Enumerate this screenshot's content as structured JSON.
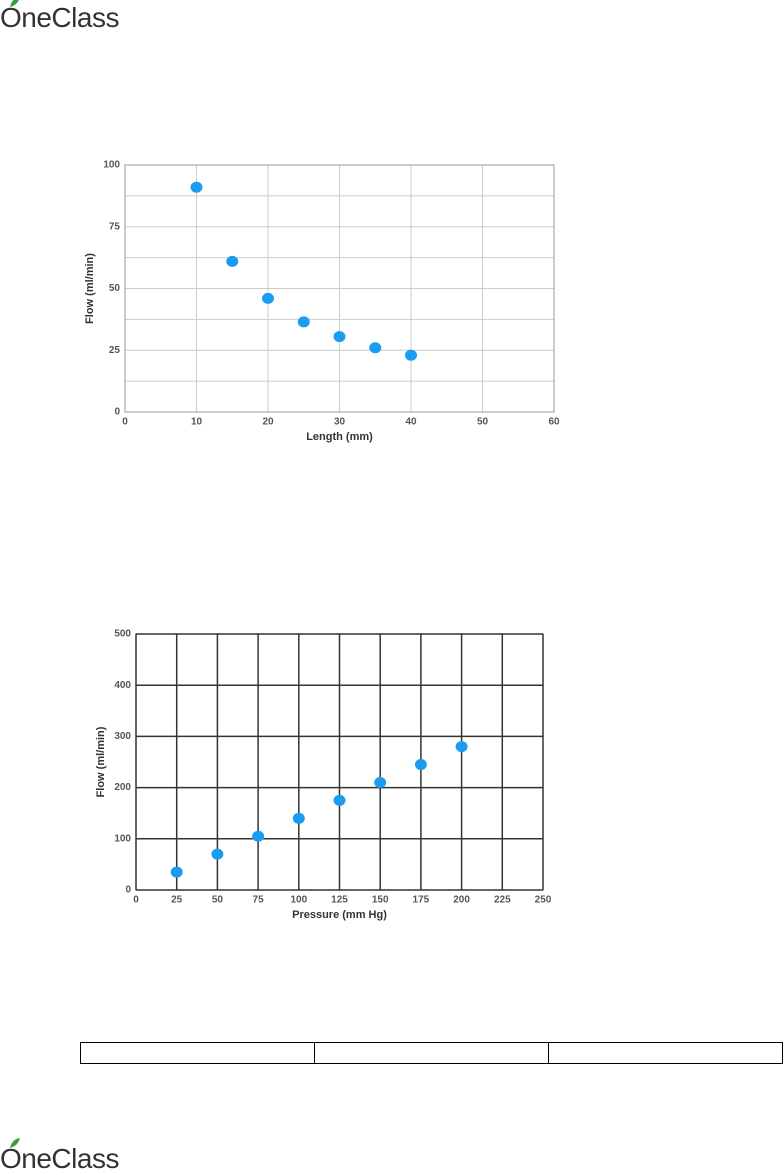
{
  "header": {
    "logo": "OneClass"
  },
  "chart_data": [
    {
      "type": "scatter",
      "x_label": "Length (mm)",
      "y_label": "Flow (ml/min)",
      "x": [
        10,
        15,
        20,
        25,
        30,
        35,
        40
      ],
      "values": [
        91,
        61,
        46,
        36.5,
        30.5,
        26,
        23
      ],
      "color": "#1a9cf0",
      "xlim": [
        0,
        60
      ],
      "ylim": [
        0,
        100
      ],
      "xticks": [
        0,
        10,
        20,
        30,
        40,
        50,
        60
      ],
      "yticks": [
        0,
        25,
        50,
        75,
        100
      ],
      "y_minor_ticks": [
        12.5,
        37.5,
        62.5,
        87.5
      ],
      "grid": true,
      "grid_color": "#cccccc"
    },
    {
      "type": "scatter",
      "x_label": "Pressure (mm Hg)",
      "y_label": "Flow (ml/min)",
      "x": [
        25,
        50,
        75,
        100,
        125,
        150,
        175,
        200
      ],
      "values": [
        35,
        70,
        105,
        140,
        175,
        210,
        245,
        280
      ],
      "color": "#1a9cf0",
      "xlim": [
        0,
        250
      ],
      "ylim": [
        0,
        500
      ],
      "xticks": [
        0,
        25,
        50,
        75,
        100,
        125,
        150,
        175,
        200,
        225,
        250
      ],
      "yticks": [
        0,
        100,
        200,
        300,
        400,
        500
      ],
      "grid": true,
      "grid_color": "#333333"
    }
  ],
  "footer": {
    "logo": "OneClass"
  }
}
